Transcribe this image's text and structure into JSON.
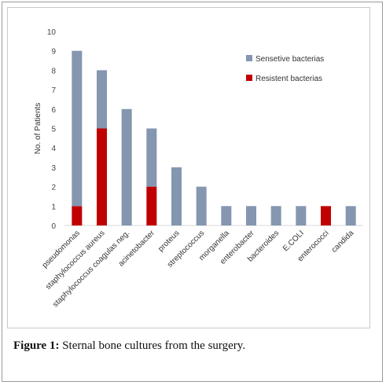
{
  "chart_data": {
    "type": "bar",
    "stacked": true,
    "categories": [
      "pseudomonas",
      "staphylococcus aureus",
      "staphylococcus coagulas neg.",
      "acinetobacter",
      "proteus",
      "streptococcus",
      "morganella",
      "enterobacter",
      "bacteroides",
      "E.COLI",
      "enterococci",
      "candida"
    ],
    "series": [
      {
        "name": "Resistent bacterias",
        "color": "#c00000",
        "values": [
          1,
          5,
          0,
          2,
          0,
          0,
          0,
          0,
          0,
          0,
          1,
          0
        ]
      },
      {
        "name": "Sensetive bacterias",
        "color": "#8496b0",
        "values": [
          8,
          3,
          6,
          3,
          3,
          2,
          1,
          1,
          1,
          1,
          0,
          1
        ]
      }
    ],
    "legend_order": [
      "Sensetive bacterias",
      "Resistent bacterias"
    ],
    "ylabel": "No. of Patients",
    "xlabel": "",
    "ylim": [
      0,
      10
    ],
    "yticks": [
      0,
      1,
      2,
      3,
      4,
      5,
      6,
      7,
      8,
      9,
      10
    ],
    "grid": false,
    "legend_position": "top-right"
  },
  "caption": {
    "label": "Figure 1:",
    "text": " Sternal bone cultures from the surgery."
  }
}
